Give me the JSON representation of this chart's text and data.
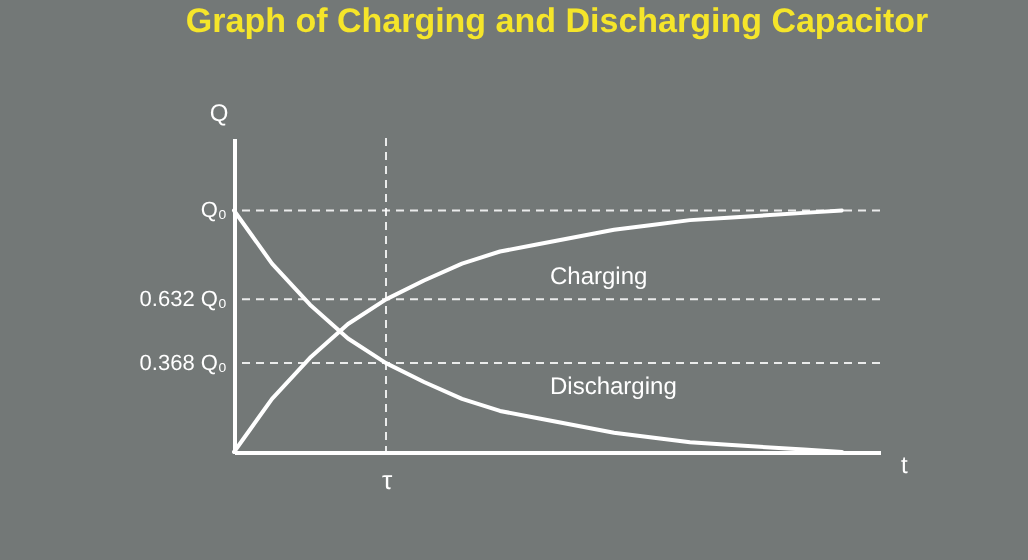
{
  "chart_data": {
    "type": "line",
    "title": "Graph of Charging and Discharging Capacitor",
    "xlabel": "t",
    "ylabel": "Q",
    "categories": [
      null,
      null,
      null,
      null,
      "τ",
      null,
      null,
      null,
      null,
      null,
      null,
      null,
      null,
      null,
      null,
      null,
      null,
      null
    ],
    "series": [
      {
        "name": "Charging",
        "color": "#ffffff",
        "values": [
          0,
          0.22,
          0.39,
          0.53,
          0.632,
          0.71,
          0.78,
          0.83,
          0.86,
          0.89,
          0.92,
          0.94,
          0.96,
          0.97,
          0.98,
          0.99,
          1,
          null
        ]
      },
      {
        "name": "Discharging",
        "color": "#ffffff",
        "values": [
          1,
          0.78,
          0.61,
          0.47,
          0.368,
          0.29,
          0.22,
          0.17,
          0.14,
          0.11,
          0.08,
          0.06,
          0.04,
          0.03,
          0.02,
          0.01,
          0,
          null
        ]
      }
    ],
    "ylim": [
      0,
      1.3
    ],
    "yticks": [
      {
        "value": 0.368,
        "label": "0.368 Q₀"
      },
      {
        "value": 0.632,
        "label": "0.632 Q₀"
      },
      {
        "value": 1,
        "label": "Q₀"
      }
    ],
    "ref_lines": [
      {
        "axis": "y",
        "value": 1,
        "color": "#ffffff",
        "line_style": "dashed"
      },
      {
        "axis": "y",
        "value": 0.632,
        "color": "#ffffff",
        "line_style": "dashed"
      },
      {
        "axis": "y",
        "value": 0.368,
        "color": "#ffffff",
        "line_style": "dashed"
      },
      {
        "axis": "x",
        "value": "τ",
        "color": "#ffffff",
        "line_style": "dashed"
      }
    ],
    "grid": false,
    "marker": "none",
    "line_style": "solid"
  }
}
